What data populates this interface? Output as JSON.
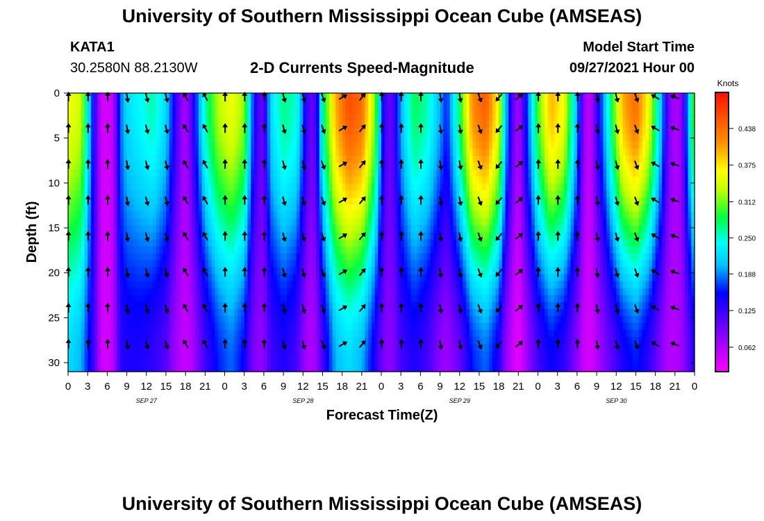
{
  "title": "University of Southern Mississippi Ocean Cube (AMSEAS)",
  "footer_title": "University of Southern Mississippi Ocean Cube (AMSEAS)",
  "station": {
    "name": "KATA1",
    "coords": "30.2580N  88.2130W"
  },
  "model": {
    "label": "Model Start Time",
    "start": "09/27/2021 Hour 00"
  },
  "chart_data": {
    "type": "heatmap",
    "title": "2-D Currents Speed-Magnitude",
    "xlabel": "Forecast Time(Z)",
    "ylabel": "Depth (ft)",
    "x_ticks": [
      "0",
      "3",
      "6",
      "9",
      "12",
      "15",
      "18",
      "21",
      "0",
      "3",
      "6",
      "9",
      "12",
      "15",
      "18",
      "21",
      "0",
      "3",
      "6",
      "9",
      "12",
      "15",
      "18",
      "21",
      "0",
      "3",
      "6",
      "9",
      "12",
      "15",
      "18",
      "21",
      "0"
    ],
    "date_labels": [
      {
        "label": "SEP 27",
        "tick_index": 4
      },
      {
        "label": "SEP 28",
        "tick_index": 12
      },
      {
        "label": "SEP 29",
        "tick_index": 20
      },
      {
        "label": "SEP 30",
        "tick_index": 28
      }
    ],
    "xlim_hours": [
      0,
      96
    ],
    "y_ticks": [
      "0",
      "5",
      "10",
      "15",
      "20",
      "25",
      "30"
    ],
    "ylim_ft": [
      0,
      31
    ],
    "colorbar": {
      "units": "Knots",
      "ticks": [
        "0.438",
        "0.375",
        "0.312",
        "0.250",
        "0.188",
        "0.125",
        "0.062"
      ],
      "range": [
        0.02,
        0.5
      ]
    },
    "columns": [
      {
        "hour": 0,
        "top": 0.36,
        "bottom": 0.22
      },
      {
        "hour": 2,
        "top": 0.34,
        "bottom": 0.2
      },
      {
        "hour": 4,
        "top": 0.14,
        "bottom": 0.12
      },
      {
        "hour": 5,
        "top": 0.05,
        "bottom": 0.05
      },
      {
        "hour": 6,
        "top": 0.04,
        "bottom": 0.04
      },
      {
        "hour": 7,
        "top": 0.06,
        "bottom": 0.06
      },
      {
        "hour": 8,
        "top": 0.18,
        "bottom": 0.13
      },
      {
        "hour": 9,
        "top": 0.22,
        "bottom": 0.14
      },
      {
        "hour": 11,
        "top": 0.24,
        "bottom": 0.14
      },
      {
        "hour": 13,
        "top": 0.26,
        "bottom": 0.13
      },
      {
        "hour": 15,
        "top": 0.22,
        "bottom": 0.11
      },
      {
        "hour": 16,
        "top": 0.16,
        "bottom": 0.08
      },
      {
        "hour": 17,
        "top": 0.1,
        "bottom": 0.06
      },
      {
        "hour": 18,
        "top": 0.06,
        "bottom": 0.05
      },
      {
        "hour": 19,
        "top": 0.12,
        "bottom": 0.06
      },
      {
        "hour": 21,
        "top": 0.26,
        "bottom": 0.12
      },
      {
        "hour": 23,
        "top": 0.33,
        "bottom": 0.16
      },
      {
        "hour": 25,
        "top": 0.36,
        "bottom": 0.18
      },
      {
        "hour": 27,
        "top": 0.32,
        "bottom": 0.15
      },
      {
        "hour": 28,
        "top": 0.2,
        "bottom": 0.1
      },
      {
        "hour": 29,
        "top": 0.12,
        "bottom": 0.08
      },
      {
        "hour": 30,
        "top": 0.1,
        "bottom": 0.08
      },
      {
        "hour": 31,
        "top": 0.22,
        "bottom": 0.12
      },
      {
        "hour": 33,
        "top": 0.27,
        "bottom": 0.14
      },
      {
        "hour": 35,
        "top": 0.25,
        "bottom": 0.12
      },
      {
        "hour": 36,
        "top": 0.18,
        "bottom": 0.08
      },
      {
        "hour": 37,
        "top": 0.1,
        "bottom": 0.06
      },
      {
        "hour": 38,
        "top": 0.12,
        "bottom": 0.07
      },
      {
        "hour": 39,
        "top": 0.26,
        "bottom": 0.12
      },
      {
        "hour": 41,
        "top": 0.4,
        "bottom": 0.2
      },
      {
        "hour": 43,
        "top": 0.46,
        "bottom": 0.22
      },
      {
        "hour": 45,
        "top": 0.44,
        "bottom": 0.2
      },
      {
        "hour": 47,
        "top": 0.32,
        "bottom": 0.14
      },
      {
        "hour": 48,
        "top": 0.18,
        "bottom": 0.1
      },
      {
        "hour": 49,
        "top": 0.1,
        "bottom": 0.08
      },
      {
        "hour": 50,
        "top": 0.12,
        "bottom": 0.09
      },
      {
        "hour": 51,
        "top": 0.2,
        "bottom": 0.12
      },
      {
        "hour": 53,
        "top": 0.28,
        "bottom": 0.14
      },
      {
        "hour": 55,
        "top": 0.26,
        "bottom": 0.12
      },
      {
        "hour": 57,
        "top": 0.2,
        "bottom": 0.08
      },
      {
        "hour": 58,
        "top": 0.16,
        "bottom": 0.07
      },
      {
        "hour": 60,
        "top": 0.28,
        "bottom": 0.1
      },
      {
        "hour": 62,
        "top": 0.42,
        "bottom": 0.16
      },
      {
        "hour": 64,
        "top": 0.45,
        "bottom": 0.18
      },
      {
        "hour": 66,
        "top": 0.36,
        "bottom": 0.14
      },
      {
        "hour": 67,
        "top": 0.22,
        "bottom": 0.08
      },
      {
        "hour": 68,
        "top": 0.12,
        "bottom": 0.05
      },
      {
        "hour": 69,
        "top": 0.06,
        "bottom": 0.03
      },
      {
        "hour": 70,
        "top": 0.14,
        "bottom": 0.06
      },
      {
        "hour": 72,
        "top": 0.3,
        "bottom": 0.12
      },
      {
        "hour": 74,
        "top": 0.4,
        "bottom": 0.15
      },
      {
        "hour": 76,
        "top": 0.36,
        "bottom": 0.13
      },
      {
        "hour": 78,
        "top": 0.2,
        "bottom": 0.08
      },
      {
        "hour": 79,
        "top": 0.08,
        "bottom": 0.05
      },
      {
        "hour": 80,
        "top": 0.05,
        "bottom": 0.04
      },
      {
        "hour": 81,
        "top": 0.12,
        "bottom": 0.06
      },
      {
        "hour": 83,
        "top": 0.26,
        "bottom": 0.1
      },
      {
        "hour": 85,
        "top": 0.4,
        "bottom": 0.14
      },
      {
        "hour": 87,
        "top": 0.44,
        "bottom": 0.16
      },
      {
        "hour": 89,
        "top": 0.36,
        "bottom": 0.13
      },
      {
        "hour": 91,
        "top": 0.2,
        "bottom": 0.08
      },
      {
        "hour": 92,
        "top": 0.1,
        "bottom": 0.06
      },
      {
        "hour": 93,
        "top": 0.06,
        "bottom": 0.06
      },
      {
        "hour": 94,
        "top": 0.08,
        "bottom": 0.07
      },
      {
        "hour": 95,
        "top": 0.2,
        "bottom": 0.1
      },
      {
        "hour": 96,
        "top": 0.32,
        "bottom": 0.14
      }
    ],
    "vector_depths_ft": [
      0,
      3.5,
      7.5,
      11.5,
      15.5,
      19.5,
      23.5,
      27.5
    ],
    "vector_hours": [
      0,
      3,
      6,
      9,
      12,
      15,
      18,
      21,
      24,
      27,
      30,
      33,
      36,
      39,
      42,
      45,
      48,
      51,
      54,
      57,
      60,
      63,
      66,
      69,
      72,
      75,
      78,
      81,
      84,
      87,
      90,
      93
    ],
    "vector_directions_deg": [
      0,
      0,
      0,
      170,
      165,
      165,
      330,
      330,
      0,
      0,
      0,
      165,
      165,
      160,
      60,
      40,
      0,
      0,
      0,
      170,
      170,
      160,
      220,
      50,
      0,
      0,
      0,
      170,
      165,
      160,
      300,
      290
    ]
  }
}
